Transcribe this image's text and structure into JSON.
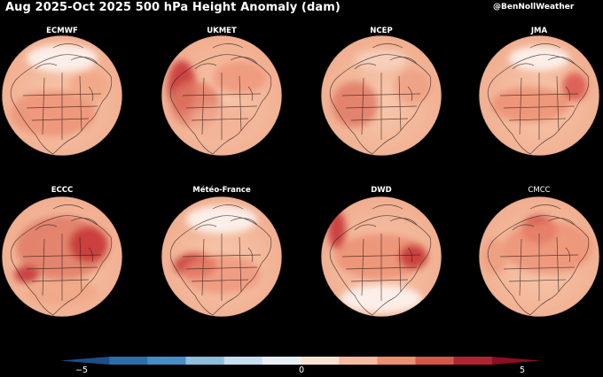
{
  "title": "Aug 2025-Oct 2025 500 hPa Height Anomaly (dam)",
  "credit": "@BenNollWeather",
  "panels": [
    {
      "model": "ECMWF",
      "label_bold": true
    },
    {
      "model": "UKMET",
      "label_bold": true
    },
    {
      "model": "NCEP",
      "label_bold": true
    },
    {
      "model": "JMA",
      "label_bold": true
    },
    {
      "model": "ECCC",
      "label_bold": true
    },
    {
      "model": "Météo-France",
      "label_bold": true
    },
    {
      "model": "DWD",
      "label_bold": true
    },
    {
      "model": "CMCC",
      "label_bold": false
    }
  ],
  "colorbar": {
    "min": -5,
    "max": 5,
    "tick_labels": [
      "−5",
      "0",
      "5"
    ],
    "colors": [
      "#1d4e89",
      "#2f6da8",
      "#4a8cc4",
      "#8fbddb",
      "#c7dfee",
      "#eaf1f6",
      "#fbe3d3",
      "#f6bca2",
      "#ec8f73",
      "#d9544a",
      "#b32232",
      "#8a0f22"
    ]
  }
}
